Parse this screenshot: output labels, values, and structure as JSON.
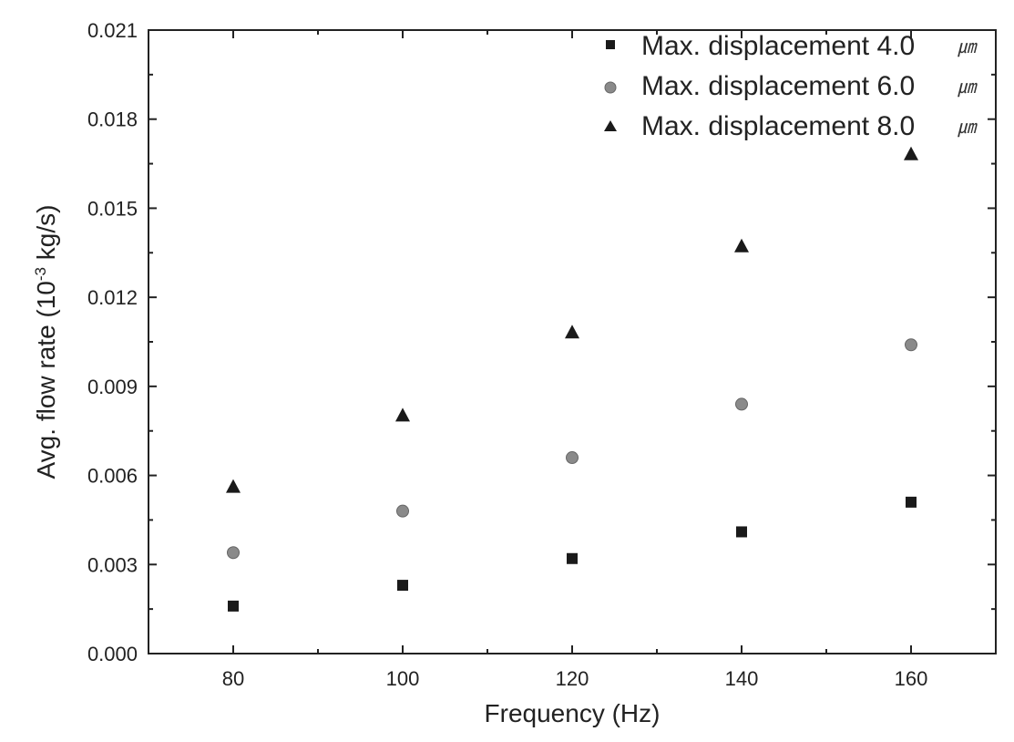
{
  "chart_data": {
    "type": "scatter",
    "xlabel": "Frequency (Hz)",
    "ylabel_main": "Avg. flow rate (10",
    "ylabel_exp": "-3",
    "ylabel_tail": " kg/s)",
    "xlim": [
      70,
      170
    ],
    "ylim": [
      0.0,
      0.021
    ],
    "xticks": [
      80,
      100,
      120,
      140,
      160
    ],
    "xtick_labels": [
      "80",
      "100",
      "120",
      "140",
      "160"
    ],
    "yticks": [
      0.0,
      0.003,
      0.006,
      0.009,
      0.012,
      0.015,
      0.018,
      0.021
    ],
    "ytick_labels": [
      "0.000",
      "0.003",
      "0.006",
      "0.009",
      "0.012",
      "0.015",
      "0.018",
      "0.021"
    ],
    "legend_position": "top-right",
    "grid": false,
    "x": [
      80,
      100,
      120,
      140,
      160
    ],
    "series": [
      {
        "name": "Max. displacement 4.0",
        "unit": "㎛",
        "marker": "square",
        "color": "#1a1a1a",
        "values": [
          0.0016,
          0.0023,
          0.0032,
          0.0041,
          0.0051
        ]
      },
      {
        "name": "Max. displacement 6.0",
        "unit": "㎛",
        "marker": "circle",
        "color": "#8a8a8a",
        "values": [
          0.0034,
          0.0048,
          0.0066,
          0.0084,
          0.0104
        ]
      },
      {
        "name": "Max. displacement 8.0",
        "unit": "㎛",
        "marker": "triangle",
        "color": "#1a1a1a",
        "values": [
          0.0056,
          0.008,
          0.0108,
          0.0137,
          0.0168
        ]
      }
    ]
  }
}
